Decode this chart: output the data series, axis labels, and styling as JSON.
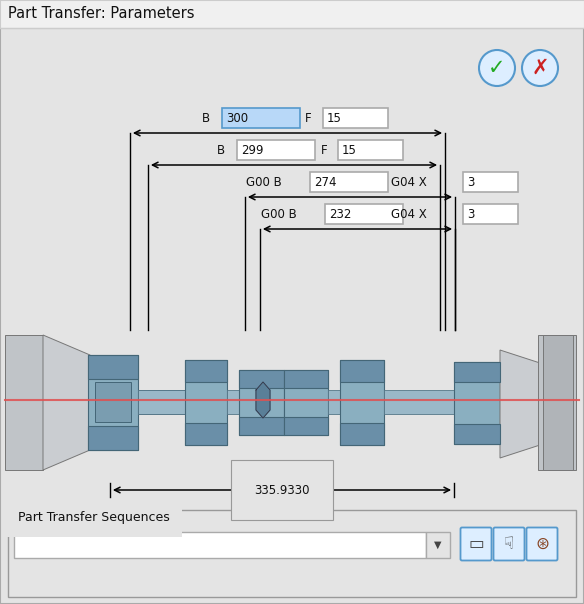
{
  "title": "Part Transfer: Parameters",
  "bg_color": "#e4e4e4",
  "white": "#ffffff",
  "blue_highlight": "#b8d8f8",
  "blue_border": "#5599cc",
  "red_line": "#e05050",
  "dimension_label": "335.9330",
  "seq_label": "Part Transfer Sequences",
  "figsize": [
    5.84,
    6.04
  ],
  "dpi": 100,
  "params": [
    {
      "lbl1": "B",
      "v1": "300",
      "hl": true,
      "lbl2": "F",
      "v2": "15"
    },
    {
      "lbl1": "B",
      "v1": "299",
      "hl": false,
      "lbl2": "F",
      "v2": "15"
    },
    {
      "lbl1": "G00 B",
      "v1": "274",
      "hl": false,
      "lbl2": "G04 X",
      "v2": "3"
    },
    {
      "lbl1": "G00 B",
      "v1": "232",
      "hl": false,
      "lbl2": "G04 X",
      "v2": "3"
    }
  ]
}
